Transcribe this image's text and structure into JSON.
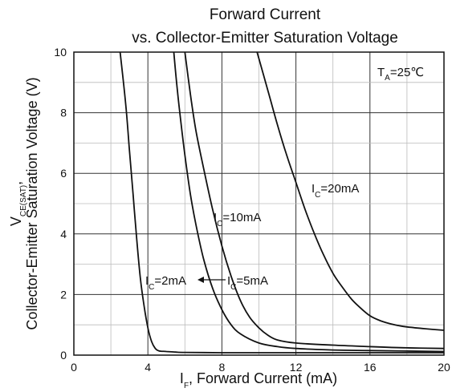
{
  "chart_data": {
    "type": "line",
    "title": "Forward Current",
    "subtitle": "vs. Collector-Emitter Saturation Voltage",
    "xlabel": {
      "main": "I",
      "sub": "F",
      "rest": ", Forward Current (mA)"
    },
    "ylabel": {
      "line1_main": "V",
      "line1_sub": "CE(SAT)",
      "line1_rest": ",",
      "line2": "Collector-Emitter Saturation Voltage (V)"
    },
    "xlim": [
      0,
      20
    ],
    "ylim": [
      0,
      10
    ],
    "xticks": [
      0,
      4,
      8,
      12,
      16,
      20
    ],
    "yticks": [
      0,
      2,
      4,
      6,
      8,
      10
    ],
    "x_minor_gridlines": [
      2,
      6,
      10,
      14,
      18
    ],
    "y_minor_gridlines": [
      1,
      3,
      5,
      7,
      9
    ],
    "grid": true,
    "annotation": {
      "main": "T",
      "sub": "A",
      "rest": "=25℃"
    },
    "series": [
      {
        "name": "IC=2mA",
        "label": {
          "main": "I",
          "sub": "C",
          "rest": "=2mA"
        },
        "x": [
          2.5,
          2.8,
          3.0,
          3.2,
          3.4,
          3.6,
          3.8,
          4.0,
          4.2,
          4.4,
          4.6,
          5.0,
          5.5,
          6.0,
          8.0,
          12.0,
          16.0,
          20.0
        ],
        "y": [
          10.0,
          8.3,
          6.8,
          5.3,
          3.8,
          2.5,
          1.6,
          0.9,
          0.45,
          0.22,
          0.14,
          0.12,
          0.1,
          0.09,
          0.08,
          0.08,
          0.08,
          0.08
        ]
      },
      {
        "name": "IC=5mA",
        "label": {
          "main": "I",
          "sub": "C",
          "rest": "=5mA"
        },
        "x": [
          5.4,
          5.6,
          5.8,
          6.0,
          6.3,
          6.6,
          7.0,
          7.5,
          8.0,
          8.5,
          9.0,
          10.0,
          11.0,
          12.0,
          14.0,
          16.0,
          20.0
        ],
        "y": [
          10.0,
          8.7,
          7.6,
          6.6,
          5.3,
          4.3,
          3.2,
          2.2,
          1.5,
          1.0,
          0.7,
          0.4,
          0.28,
          0.22,
          0.17,
          0.15,
          0.12
        ]
      },
      {
        "name": "IC=10mA",
        "label": {
          "main": "I",
          "sub": "C",
          "rest": "=10mA"
        },
        "x": [
          6.0,
          6.3,
          6.6,
          7.0,
          7.5,
          8.0,
          8.5,
          9.0,
          9.5,
          10.0,
          10.5,
          11.0,
          12.0,
          14.0,
          16.0,
          18.0,
          20.0
        ],
        "y": [
          10.0,
          8.6,
          7.4,
          6.2,
          4.8,
          3.6,
          2.6,
          1.8,
          1.25,
          0.9,
          0.65,
          0.5,
          0.4,
          0.33,
          0.28,
          0.24,
          0.22
        ]
      },
      {
        "name": "IC=20mA",
        "label": {
          "main": "I",
          "sub": "C",
          "rest": "=20mA"
        },
        "x": [
          9.9,
          10.5,
          11.0,
          11.5,
          12.0,
          12.5,
          13.0,
          13.5,
          14.0,
          14.5,
          15.0,
          15.5,
          16.0,
          16.5,
          17.0,
          17.5,
          18.0,
          19.0,
          20.0
        ],
        "y": [
          10.0,
          8.7,
          7.6,
          6.6,
          5.7,
          4.8,
          4.0,
          3.3,
          2.7,
          2.25,
          1.85,
          1.55,
          1.3,
          1.15,
          1.05,
          0.98,
          0.93,
          0.87,
          0.82
        ]
      }
    ]
  }
}
